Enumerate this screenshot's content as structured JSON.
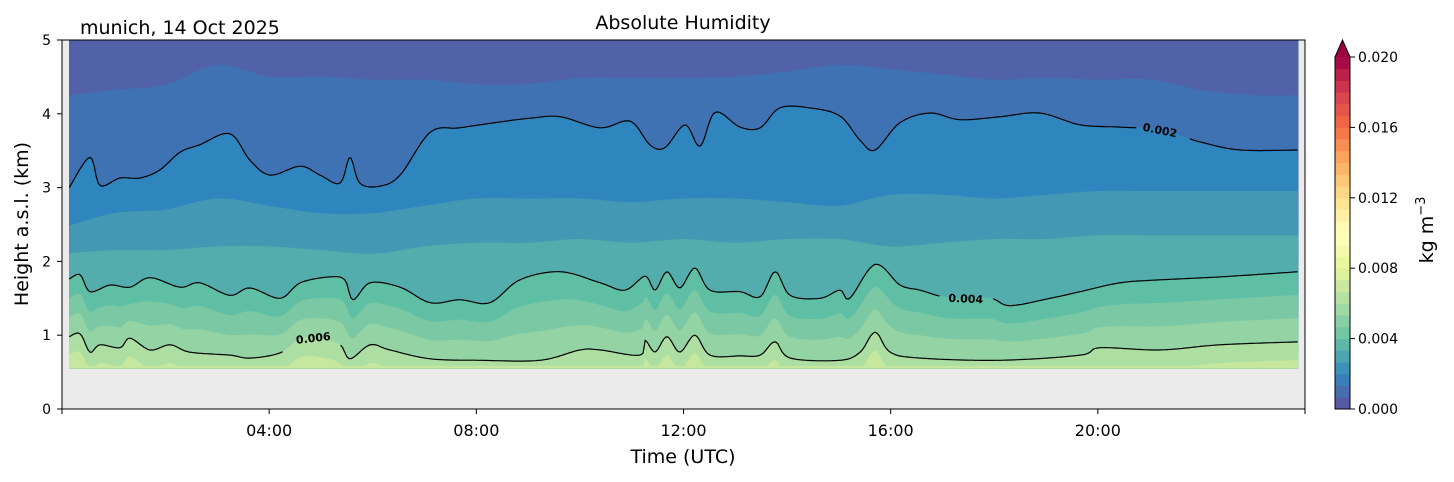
{
  "chart_data": {
    "type": "contourf",
    "title": "Absolute Humidity",
    "subtitle": "munich, 14 Oct 2025",
    "xlabel": "Time (UTC)",
    "ylabel": "Height a.s.l. (km)",
    "xlim": [
      0,
      24
    ],
    "ylim": [
      0,
      5
    ],
    "x_ticks": [
      {
        "value": 4,
        "label": "04:00"
      },
      {
        "value": 8,
        "label": "08:00"
      },
      {
        "value": 12,
        "label": "12:00"
      },
      {
        "value": 16,
        "label": "16:00"
      },
      {
        "value": 20,
        "label": "20:00"
      }
    ],
    "y_ticks": [
      {
        "value": 0,
        "label": "0"
      },
      {
        "value": 1,
        "label": "1"
      },
      {
        "value": 2,
        "label": "2"
      },
      {
        "value": 3,
        "label": "3"
      },
      {
        "value": 4,
        "label": "4"
      },
      {
        "value": 5,
        "label": "5"
      }
    ],
    "data_range": {
      "time_start": 0.14,
      "time_end": 23.87,
      "lowest_height_km": 0.55
    },
    "missing_color": "#ebebeb",
    "colormap": "Spectral_r",
    "colorbar": {
      "label": "kg m",
      "label_exponent": "−3",
      "min": 0.0,
      "max": 0.02,
      "n_levels": 30,
      "extend": "max",
      "ticks": [
        {
          "value": 0.0,
          "label": "0.000"
        },
        {
          "value": 0.004,
          "label": "0.004"
        },
        {
          "value": 0.008,
          "label": "0.008"
        },
        {
          "value": 0.012,
          "label": "0.012"
        },
        {
          "value": 0.016,
          "label": "0.016"
        },
        {
          "value": 0.02,
          "label": "0.020"
        }
      ]
    },
    "fill_boundaries": {
      "hours": [
        0,
        1,
        2,
        3,
        4,
        5,
        6,
        7,
        8,
        9,
        10,
        11,
        12,
        13,
        14,
        15,
        16,
        17,
        18,
        19,
        20,
        21,
        22,
        23,
        24
      ],
      "level_0.0007_km": [
        4.23,
        4.32,
        4.39,
        4.66,
        4.5,
        4.5,
        4.46,
        4.46,
        4.4,
        4.4,
        4.48,
        4.48,
        4.48,
        4.5,
        4.57,
        4.66,
        4.6,
        4.53,
        4.46,
        4.48,
        4.46,
        4.46,
        4.32,
        4.25,
        4.25
      ],
      "level_0.0027_km": [
        2.45,
        2.65,
        2.7,
        2.85,
        2.75,
        2.65,
        2.65,
        2.75,
        2.85,
        2.85,
        2.85,
        2.8,
        2.85,
        2.85,
        2.8,
        2.75,
        2.9,
        2.9,
        2.85,
        2.9,
        2.95,
        2.95,
        2.95,
        2.95,
        2.95
      ],
      "level_0.0033_km": [
        2.1,
        2.15,
        2.15,
        2.2,
        2.2,
        2.15,
        2.1,
        2.2,
        2.25,
        2.25,
        2.3,
        2.25,
        2.3,
        2.25,
        2.3,
        2.3,
        2.2,
        2.25,
        2.3,
        2.3,
        2.35,
        2.35,
        2.35,
        2.35,
        2.35
      ]
    },
    "band_colors": [
      "#5262a9",
      "#3f72b3",
      "#2f86bf",
      "#4399b4",
      "#52adac",
      "#5fbfa5",
      "#7ac9a4",
      "#93d3a4",
      "#addfa2",
      "#c5e79e"
    ],
    "contours": [
      {
        "level": 0.002,
        "label": "0.002",
        "time": [
          0.14,
          0.54,
          0.73,
          1.12,
          1.51,
          1.89,
          2.28,
          2.66,
          3.24,
          3.63,
          4.02,
          4.6,
          4.98,
          5.37,
          5.56,
          5.75,
          6.14,
          6.53,
          7.11,
          7.68,
          8.46,
          9.04,
          9.62,
          10.39,
          10.97,
          11.35,
          11.64,
          12.03,
          12.32,
          12.61,
          13.09,
          13.48,
          13.86,
          14.44,
          15.02,
          15.41,
          15.7,
          16.18,
          16.76,
          17.34,
          18.11,
          18.88,
          19.66,
          20.43,
          21.2,
          21.97,
          22.75,
          23.87
        ],
        "height_km": [
          3.0,
          3.41,
          3.03,
          3.13,
          3.13,
          3.24,
          3.48,
          3.58,
          3.73,
          3.37,
          3.17,
          3.29,
          3.17,
          3.06,
          3.41,
          3.06,
          3.02,
          3.17,
          3.75,
          3.81,
          3.89,
          3.94,
          3.96,
          3.81,
          3.9,
          3.58,
          3.54,
          3.85,
          3.56,
          4.02,
          3.82,
          3.81,
          4.08,
          4.08,
          3.97,
          3.64,
          3.51,
          3.88,
          4.01,
          3.92,
          3.96,
          4.01,
          3.85,
          3.82,
          3.78,
          3.62,
          3.51,
          3.51
        ]
      },
      {
        "level": 0.004,
        "label": "0.004",
        "time": [
          0.14,
          0.35,
          0.54,
          0.93,
          1.31,
          1.7,
          2.28,
          2.66,
          3.24,
          3.63,
          4.21,
          4.6,
          5.17,
          5.46,
          5.62,
          5.95,
          6.53,
          7.11,
          7.68,
          8.26,
          8.84,
          9.62,
          10.39,
          10.87,
          11.26,
          11.45,
          11.68,
          11.93,
          12.22,
          12.51,
          13.09,
          13.48,
          13.77,
          14.06,
          14.64,
          15.02,
          15.21,
          15.7,
          16.18,
          16.57,
          17.15,
          17.92,
          18.3,
          19.08,
          19.66,
          20.43,
          21.2,
          22.36,
          23.87
        ],
        "height_km": [
          1.76,
          1.82,
          1.59,
          1.68,
          1.65,
          1.78,
          1.65,
          1.71,
          1.54,
          1.64,
          1.5,
          1.71,
          1.79,
          1.75,
          1.48,
          1.71,
          1.65,
          1.44,
          1.48,
          1.44,
          1.75,
          1.86,
          1.71,
          1.61,
          1.8,
          1.61,
          1.86,
          1.64,
          1.91,
          1.61,
          1.59,
          1.52,
          1.86,
          1.54,
          1.5,
          1.61,
          1.5,
          1.96,
          1.68,
          1.61,
          1.5,
          1.5,
          1.4,
          1.5,
          1.59,
          1.71,
          1.75,
          1.79,
          1.86
        ]
      },
      {
        "level": 0.006,
        "label": "0.006",
        "time": [
          0.14,
          0.35,
          0.54,
          0.73,
          1.12,
          1.31,
          1.7,
          2.09,
          2.47,
          3.24,
          3.63,
          4.21,
          4.6,
          4.98,
          5.37,
          5.56,
          5.95,
          6.33,
          7.11,
          8.07,
          9.23,
          10.0,
          10.39,
          11.16,
          11.26,
          11.45,
          11.68,
          11.93,
          12.22,
          12.51,
          13.09,
          13.48,
          13.77,
          14.06,
          15.02,
          15.41,
          15.7,
          15.99,
          16.57,
          18.11,
          19.66,
          20.04,
          21.2,
          22.36,
          23.87
        ],
        "height_km": [
          0.98,
          1.02,
          0.77,
          0.87,
          0.83,
          0.96,
          0.8,
          0.87,
          0.77,
          0.73,
          0.69,
          0.76,
          0.95,
          0.95,
          0.87,
          0.68,
          0.87,
          0.8,
          0.68,
          0.66,
          0.66,
          0.8,
          0.8,
          0.73,
          0.93,
          0.77,
          0.98,
          0.77,
          1.0,
          0.73,
          0.72,
          0.73,
          0.91,
          0.69,
          0.66,
          0.77,
          1.04,
          0.77,
          0.69,
          0.66,
          0.73,
          0.83,
          0.8,
          0.87,
          0.91
        ]
      }
    ]
  }
}
